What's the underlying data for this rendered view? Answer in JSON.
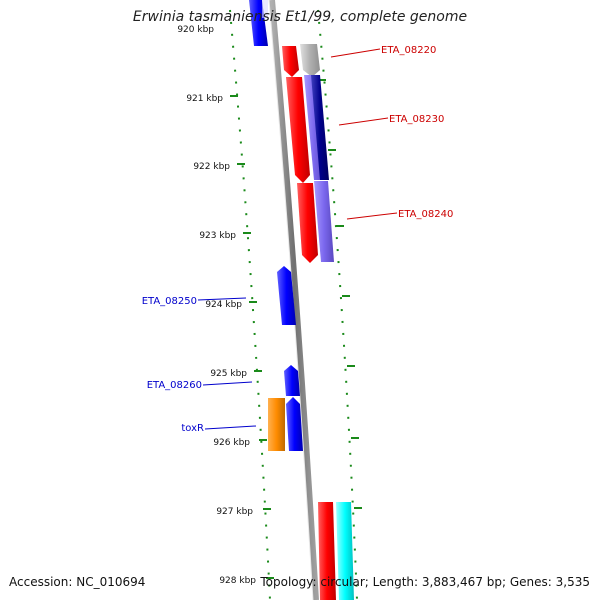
{
  "title": "Erwinia tasmaniensis Et1/99, complete genome",
  "footer": {
    "accession": "Accession: NC_010694",
    "stats": "Topology: circular; Length: 3,883,467 bp; Genes: 3,535"
  },
  "ticks": [
    {
      "label": "920 kbp"
    },
    {
      "label": "921 kbp"
    },
    {
      "label": "922 kbp"
    },
    {
      "label": "923 kbp"
    },
    {
      "label": "924 kbp"
    },
    {
      "label": "925 kbp"
    },
    {
      "label": "926 kbp"
    },
    {
      "label": "927 kbp"
    },
    {
      "label": "928 kbp"
    }
  ],
  "gene_labels": [
    {
      "text": "ETA_08220",
      "color": "#cc0000"
    },
    {
      "text": "ETA_08230",
      "color": "#cc0000"
    },
    {
      "text": "ETA_08240",
      "color": "#cc0000"
    },
    {
      "text": "ETA_08250",
      "color": "#0000cc"
    },
    {
      "text": "ETA_08260",
      "color": "#0000cc"
    },
    {
      "text": "toxR",
      "color": "#0000cc"
    }
  ],
  "colors": {
    "backbone": "#808080",
    "tick": "#1a8a1a",
    "forward_gene": "#ff0000",
    "reverse_gene": "#0000ff",
    "gray_feature": "#b0b0b0",
    "navy_feature": "#00008b",
    "slate_feature": "#7b68ee",
    "orange_feature": "#ff8c00",
    "cyan_feature": "#00ffff"
  }
}
